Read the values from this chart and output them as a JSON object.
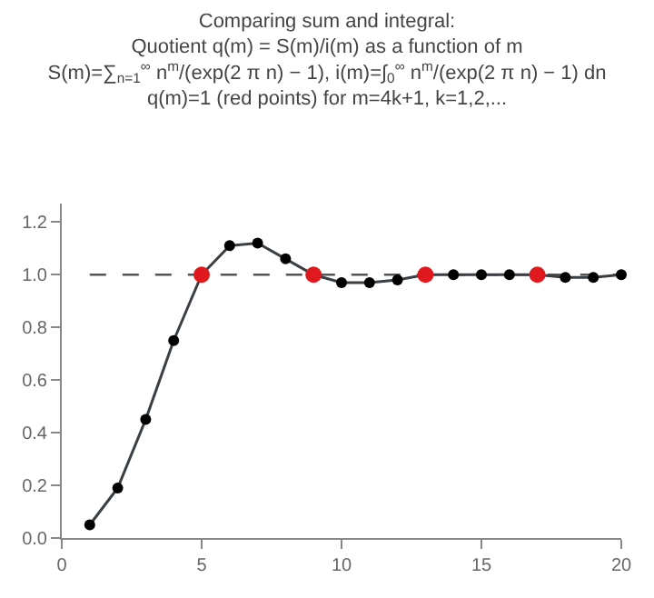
{
  "chart_data": {
    "type": "line",
    "title": "Comparing sum and integral:\nQuotient q(m) = S(m)/i(m) as a function of m\nS(m)=∑$_{n=1}$$^{∞}$ n$^{m}$/(exp(2 π n) − 1), i(m)=∫$_{0}$$^{∞}$ n$^{m}$/(exp(2 π n) − 1) dn\nq(m)=1 (red points) for m=4k+1, k=1,2,...",
    "series": [
      {
        "color": "#3a3f44",
        "marker": "circle",
        "x": [
          1,
          2,
          3,
          4,
          5,
          6,
          7,
          8,
          9,
          10,
          11,
          12,
          13,
          14,
          15,
          16,
          17,
          18,
          19,
          20
        ],
        "values": [
          0.05,
          0.19,
          0.45,
          0.75,
          1.0,
          1.11,
          1.12,
          1.06,
          1.0,
          0.97,
          0.97,
          0.98,
          1.0,
          1.0,
          1.0,
          1.0,
          1.0,
          0.99,
          0.99,
          1.0
        ]
      },
      {
        "type": "scatter",
        "color": "#e0191f",
        "marker": "circle",
        "x": [
          5,
          9,
          13,
          17
        ],
        "values": [
          1.0,
          1.0,
          1.0,
          1.0
        ]
      }
    ],
    "xlim": [
      0,
      20
    ],
    "xticks": [
      0,
      5,
      10,
      15,
      20
    ],
    "ylim": [
      0,
      1.27
    ],
    "yticks": [
      {
        "value": 0,
        "label": "0.0"
      },
      {
        "value": 0.2,
        "label": "0.2"
      },
      {
        "value": 0.4,
        "label": "0.4"
      },
      {
        "value": 0.6,
        "label": "0.6"
      },
      {
        "value": 0.8,
        "label": "0.8"
      },
      {
        "value": 1.0,
        "label": "1.0"
      },
      {
        "value": 1.2,
        "label": "1.2"
      }
    ],
    "ref_lines": [
      {
        "axis": "y",
        "value": 1.0,
        "color": "#555555",
        "line_style": "dashed"
      }
    ],
    "grid": false
  }
}
